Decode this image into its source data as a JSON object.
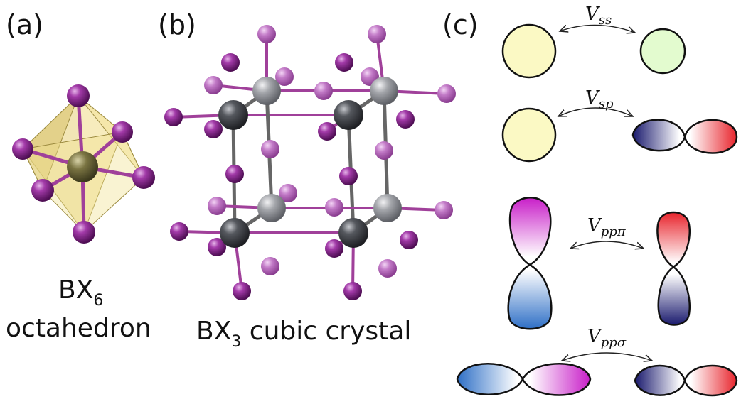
{
  "panels": {
    "a": {
      "label": "(a)",
      "caption_main": "BX",
      "caption_sub": "6",
      "caption_line2": "octahedron"
    },
    "b": {
      "label": "(b)",
      "caption_main": "BX",
      "caption_sub": "3",
      "caption_rest": " cubic crystal"
    },
    "c": {
      "label": "(c)",
      "interactions": [
        {
          "symbol": "V",
          "sub": "ss"
        },
        {
          "symbol": "V",
          "sub": "sp"
        },
        {
          "symbol": "V",
          "sub": "ppπ"
        },
        {
          "symbol": "V",
          "sub": "ppσ"
        }
      ]
    }
  },
  "colors": {
    "atom_purple": "#7a1f7e",
    "atom_light_purple": "#b35cb8",
    "atom_dark_gray": "#3e4046",
    "atom_light_gray": "#8e9096",
    "octa_face": "#e8d27a",
    "bond_gray": "#6b6b6b",
    "bond_magenta": "#a0409a",
    "s_yellow": "#fbf9c4",
    "s_green": "#e3fbcf",
    "p_blue": "#2e6fc6",
    "p_navy": "#1a1a6e",
    "p_red": "#e8242c",
    "p_magenta": "#c81ec8"
  }
}
